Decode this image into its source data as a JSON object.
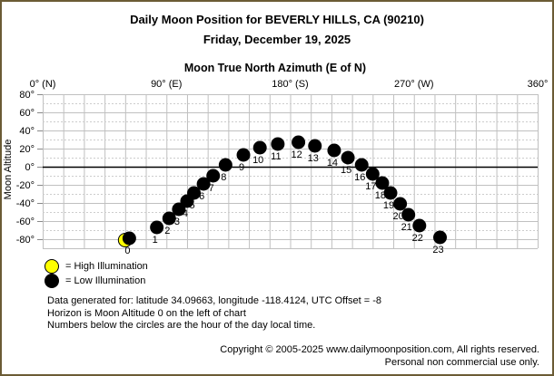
{
  "page": {
    "title": "Daily Moon Position for BEVERLY HILLS, CA (90210)",
    "subtitle": "Friday, December 19, 2025"
  },
  "chart_data": {
    "type": "scatter",
    "title": "Moon True North Azimuth (E of N)",
    "xlabel": "Moon True North Azimuth (E of N)",
    "ylabel": "Moon Altitude",
    "grid": true,
    "x_axis": {
      "min": 0,
      "max": 360,
      "gridline_step": 15,
      "tick_labels": [
        {
          "value": 0,
          "label": "0° (N)"
        },
        {
          "value": 90,
          "label": "90° (E)"
        },
        {
          "value": 180,
          "label": "180° (S)"
        },
        {
          "value": 270,
          "label": "270° (W)"
        },
        {
          "value": 360,
          "label": "360°"
        }
      ]
    },
    "y_axis": {
      "min": -90,
      "max": 80,
      "horizon_value": 0,
      "tick_labels": [
        {
          "value": 80,
          "label": "80°"
        },
        {
          "value": 60,
          "label": "60°"
        },
        {
          "value": 40,
          "label": "40°"
        },
        {
          "value": 20,
          "label": "20°"
        },
        {
          "value": 0,
          "label": "0°"
        },
        {
          "value": -20,
          "label": "-20°"
        },
        {
          "value": -40,
          "label": "-40°"
        },
        {
          "value": -60,
          "label": "-60°"
        },
        {
          "value": -80,
          "label": "-80°"
        }
      ]
    },
    "series": [
      {
        "name": "Low Illumination moon position by hour",
        "illumination": "low",
        "color": "#000000",
        "points": [
          {
            "hour": 0,
            "azimuth": 63,
            "altitude": -79
          },
          {
            "hour": 1,
            "azimuth": 83,
            "altitude": -67
          },
          {
            "hour": 2,
            "azimuth": 92,
            "altitude": -57
          },
          {
            "hour": 3,
            "azimuth": 99,
            "altitude": -47
          },
          {
            "hour": 4,
            "azimuth": 105,
            "altitude": -38
          },
          {
            "hour": 5,
            "azimuth": 110,
            "altitude": -29
          },
          {
            "hour": 6,
            "azimuth": 117,
            "altitude": -19
          },
          {
            "hour": 7,
            "azimuth": 124,
            "altitude": -10
          },
          {
            "hour": 8,
            "azimuth": 133,
            "altitude": 2
          },
          {
            "hour": 9,
            "azimuth": 146,
            "altitude": 13
          },
          {
            "hour": 10,
            "azimuth": 158,
            "altitude": 21
          },
          {
            "hour": 11,
            "azimuth": 171,
            "altitude": 25
          },
          {
            "hour": 12,
            "azimuth": 186,
            "altitude": 27
          },
          {
            "hour": 13,
            "azimuth": 198,
            "altitude": 23
          },
          {
            "hour": 14,
            "azimuth": 212,
            "altitude": 18
          },
          {
            "hour": 15,
            "azimuth": 222,
            "altitude": 10
          },
          {
            "hour": 16,
            "azimuth": 232,
            "altitude": 2
          },
          {
            "hour": 17,
            "azimuth": 240,
            "altitude": -8
          },
          {
            "hour": 18,
            "azimuth": 247,
            "altitude": -18
          },
          {
            "hour": 19,
            "azimuth": 253,
            "altitude": -29
          },
          {
            "hour": 20,
            "azimuth": 260,
            "altitude": -41
          },
          {
            "hour": 21,
            "azimuth": 266,
            "altitude": -53
          },
          {
            "hour": 22,
            "azimuth": 274,
            "altitude": -65
          },
          {
            "hour": 23,
            "azimuth": 289,
            "altitude": -78
          }
        ]
      }
    ],
    "underlay_marker": {
      "note": "yellow high-illumination marker peeking out behind the hour 0 circle",
      "azimuth": 60,
      "altitude": -81,
      "color": "#ffff00"
    }
  },
  "legend": {
    "items": [
      {
        "name": "high-illumination",
        "swatch_color": "#ffff00",
        "label": "= High Illumination"
      },
      {
        "name": "low-illumination",
        "swatch_color": "#000000",
        "label": "= Low Illumination"
      }
    ]
  },
  "notes": {
    "lines": [
      "Data generated for: latitude 34.09663, longitude -118.4124, UTC Offset = -8",
      "Horizon is Moon Altitude 0 on the left of chart",
      "Numbers below the circles are the hour of the day local time."
    ]
  },
  "copyright": {
    "line1": "Copyright © 2005-2025 www.dailymoonposition.com, All rights reserved.",
    "line2": "Personal non commercial use only."
  },
  "colors": {
    "frame_border": "#6b5b35",
    "grid_solid": "#c0c0c0",
    "grid_dashed": "#cdcdcd",
    "horizon_line": "#000000",
    "background": "#ffffff",
    "high_illumination": "#ffff00",
    "low_illumination": "#000000"
  }
}
